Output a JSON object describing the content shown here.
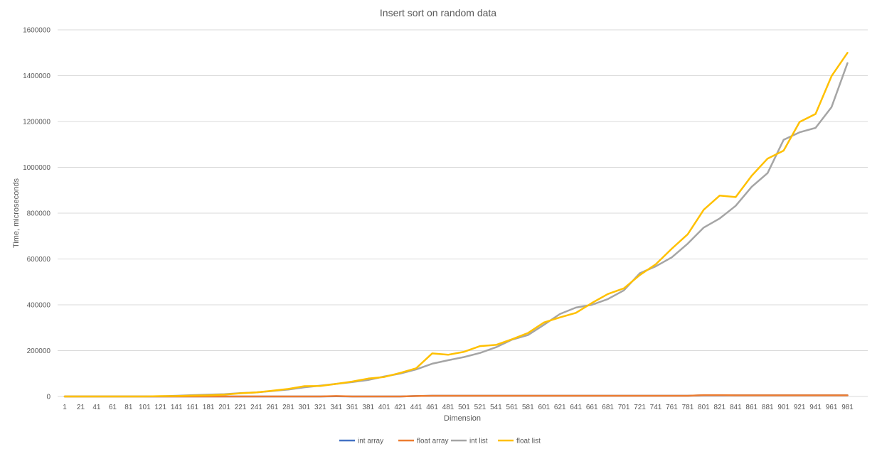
{
  "chart_data": {
    "type": "line",
    "title": "Insert sort on random data",
    "xlabel": "Dimension",
    "ylabel": "Time, microseconds",
    "ylim": [
      0,
      1600000
    ],
    "yticks": [
      "0",
      "200000",
      "400000",
      "600000",
      "800000",
      "1000000",
      "1200000",
      "1400000",
      "1600000"
    ],
    "grid": true,
    "legend_position": "bottom",
    "x": [
      1,
      21,
      41,
      61,
      81,
      101,
      121,
      141,
      161,
      181,
      201,
      221,
      241,
      261,
      281,
      301,
      321,
      341,
      361,
      381,
      401,
      421,
      441,
      461,
      481,
      501,
      521,
      541,
      561,
      581,
      601,
      621,
      641,
      661,
      681,
      701,
      721,
      741,
      761,
      781,
      801,
      821,
      841,
      861,
      881,
      901,
      921,
      941,
      961,
      981
    ],
    "series": [
      {
        "name": "int array",
        "color": "#4472C4",
        "values": [
          0,
          0,
          0,
          0,
          0,
          0,
          0,
          0,
          0,
          0,
          0,
          0,
          0,
          0,
          0,
          0,
          0,
          500,
          0,
          0,
          0,
          0,
          2000,
          3000,
          3000,
          3000,
          3000,
          3000,
          3000,
          3000,
          3000,
          3000,
          3000,
          3000,
          3000,
          3000,
          3000,
          3000,
          3000,
          3000,
          5000,
          5000,
          5000,
          5000,
          5000,
          5000,
          5000,
          5000,
          5000,
          5000
        ]
      },
      {
        "name": "float array",
        "color": "#ED7D31",
        "values": [
          0,
          0,
          0,
          0,
          0,
          0,
          0,
          0,
          0,
          0,
          0,
          0,
          0,
          0,
          0,
          0,
          0,
          2000,
          0,
          0,
          0,
          0,
          2000,
          3000,
          3000,
          3000,
          3000,
          3000,
          3000,
          3000,
          3000,
          3000,
          3000,
          3000,
          3000,
          3000,
          3000,
          3000,
          3000,
          3000,
          6000,
          6000,
          5000,
          5000,
          5000,
          5000,
          5000,
          5000,
          5000,
          5000
        ]
      },
      {
        "name": "int list",
        "color": "#A5A5A5",
        "values": [
          0,
          0,
          0,
          0,
          0,
          0,
          1000,
          3000,
          6000,
          8000,
          10000,
          15000,
          18000,
          24000,
          30000,
          40000,
          47000,
          55000,
          63000,
          72000,
          87000,
          100000,
          118000,
          143000,
          158000,
          172000,
          190000,
          215000,
          248000,
          268000,
          313000,
          360000,
          388000,
          400000,
          425000,
          463000,
          538000,
          568000,
          607000,
          667000,
          737000,
          777000,
          832000,
          915000,
          975000,
          1120000,
          1153000,
          1172000,
          1263000,
          1455000
        ]
      },
      {
        "name": "float list",
        "color": "#FFC000",
        "values": [
          0,
          0,
          0,
          0,
          0,
          0,
          1500,
          2000,
          4000,
          5000,
          8000,
          14000,
          18000,
          25000,
          33000,
          45000,
          46000,
          55000,
          65000,
          78000,
          85000,
          103000,
          123000,
          188000,
          182000,
          195000,
          220000,
          225000,
          250000,
          277000,
          323000,
          345000,
          365000,
          408000,
          447000,
          472000,
          530000,
          577000,
          645000,
          708000,
          815000,
          877000,
          870000,
          963000,
          1038000,
          1073000,
          1198000,
          1233000,
          1398000,
          1500000
        ]
      }
    ]
  }
}
